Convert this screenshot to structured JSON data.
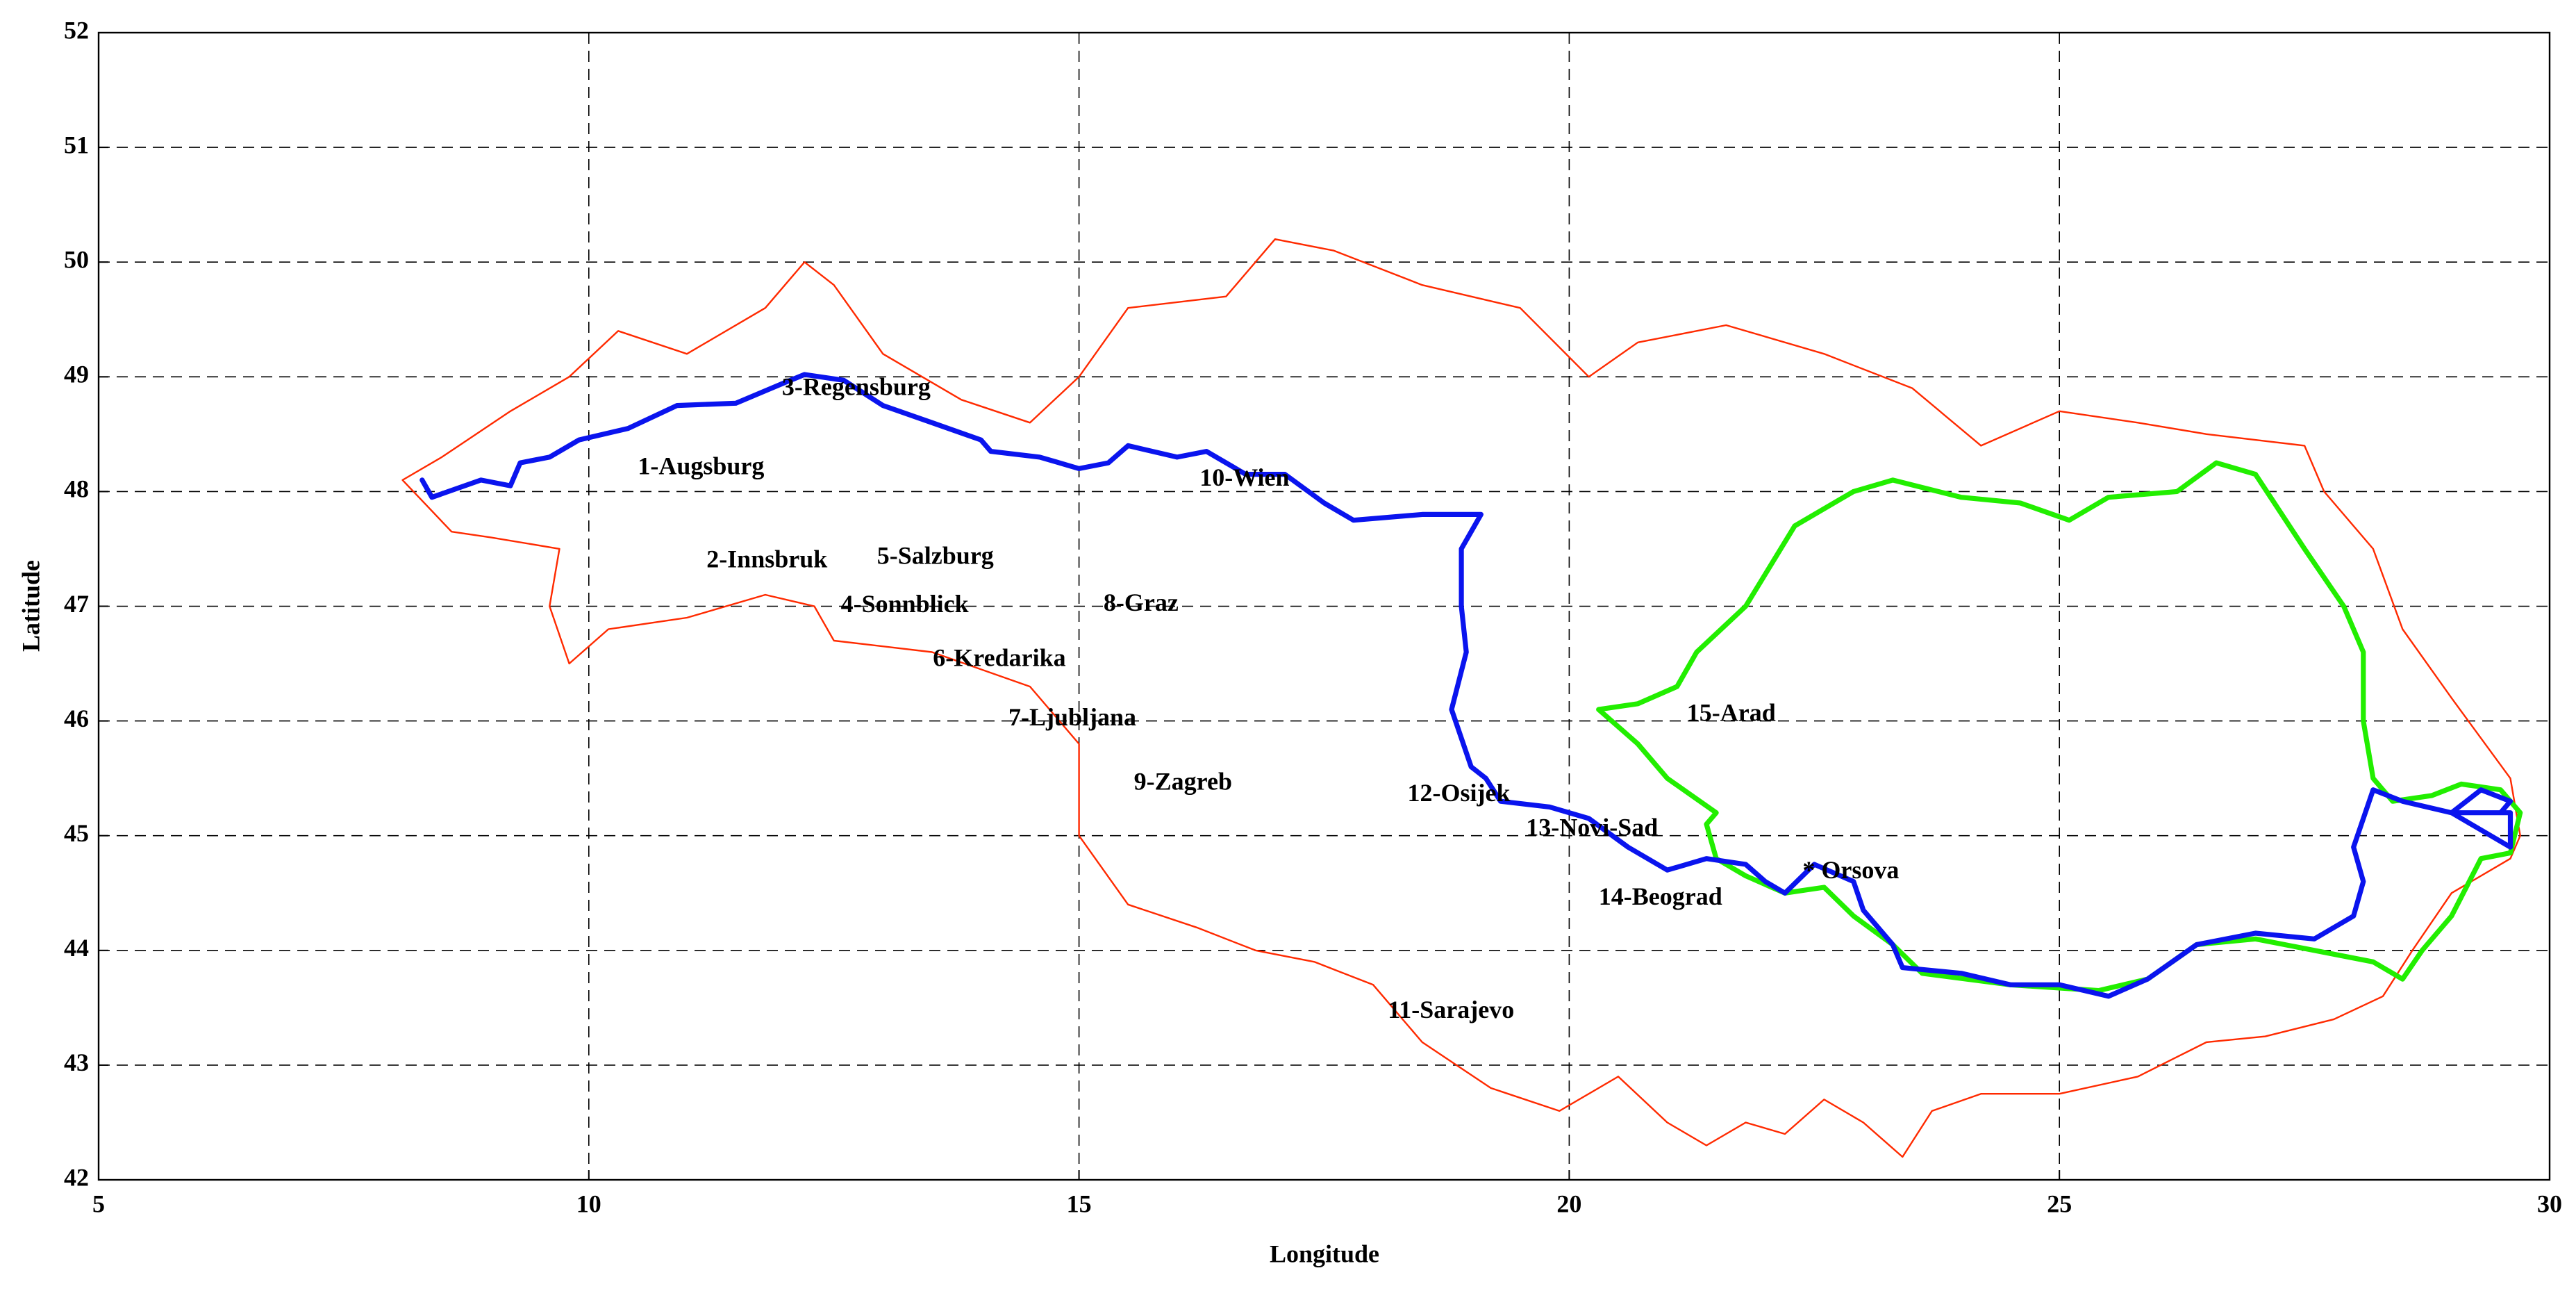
{
  "chart_data": {
    "type": "line",
    "xlabel": "Longitude",
    "ylabel": "Latitude",
    "xlim": [
      5,
      30
    ],
    "ylim": [
      42,
      52
    ],
    "xticks": [
      5,
      10,
      15,
      20,
      25,
      30
    ],
    "yticks": [
      42,
      43,
      44,
      45,
      46,
      47,
      48,
      49,
      50,
      51,
      52
    ],
    "grid": true,
    "series": [
      {
        "color": "#ff2a00",
        "width": 1,
        "x": [
          8.1,
          8.6,
          9.0,
          9.7,
          9.6,
          9.8,
          10.2,
          11.0,
          11.8,
          12.3,
          12.5,
          13.5,
          14.5,
          15.0,
          15.0,
          15.5,
          16.2,
          16.8,
          17.4,
          18.0,
          18.5,
          19.2,
          19.9,
          20.5,
          21.0,
          21.4,
          21.8,
          22.2,
          22.6,
          23.0,
          23.4,
          23.7,
          24.2,
          25.0,
          25.8,
          26.5,
          27.1,
          27.8,
          28.3,
          28.6,
          29.0,
          29.6,
          29.7,
          29.6,
          29.0,
          28.5,
          28.2,
          27.7,
          27.5,
          26.5,
          25.8,
          25.0,
          24.2,
          23.5,
          22.6,
          21.6,
          20.7,
          20.2,
          19.5,
          18.5,
          17.6,
          17.0,
          16.5,
          15.5,
          15.0,
          14.5,
          13.8,
          13.0,
          12.5,
          12.2,
          11.8,
          11.0,
          10.3,
          9.8,
          9.2,
          8.5,
          8.1
        ],
        "y": [
          48.1,
          47.65,
          47.6,
          47.5,
          47.0,
          46.5,
          46.8,
          46.9,
          47.1,
          47.0,
          46.7,
          46.6,
          46.3,
          45.8,
          45.0,
          44.4,
          44.2,
          44.0,
          43.9,
          43.7,
          43.2,
          42.8,
          42.6,
          42.9,
          42.5,
          42.3,
          42.5,
          42.4,
          42.7,
          42.5,
          42.2,
          42.6,
          42.75,
          42.75,
          42.9,
          43.2,
          43.25,
          43.4,
          43.6,
          44.0,
          44.5,
          44.8,
          45.0,
          45.5,
          46.2,
          46.8,
          47.5,
          48.0,
          48.4,
          48.5,
          48.6,
          48.7,
          48.4,
          48.9,
          49.2,
          49.45,
          49.3,
          49.0,
          49.6,
          49.8,
          50.1,
          50.2,
          49.7,
          49.6,
          49.0,
          48.6,
          48.8,
          49.2,
          49.8,
          50.0,
          49.6,
          49.2,
          49.4,
          49.0,
          48.7,
          48.3,
          48.1
        ]
      },
      {
        "color": "#22ee00",
        "width": 3,
        "x": [
          20.3,
          20.7,
          21.1,
          21.3,
          21.8,
          22.3,
          22.9,
          23.3,
          24.0,
          24.6,
          25.1,
          25.5,
          26.2,
          26.6,
          27.0,
          27.5,
          27.9,
          28.1,
          28.1,
          28.2,
          28.4,
          28.8,
          29.1,
          29.5,
          29.7,
          29.6,
          29.3,
          29.0,
          28.7,
          28.5,
          28.2,
          27.6,
          27.0,
          26.4,
          25.9,
          25.4,
          24.5,
          23.6,
          23.3,
          22.9,
          22.6,
          22.2,
          21.8,
          21.5,
          21.4,
          21.5,
          21.0,
          20.7,
          20.3
        ],
        "y": [
          46.1,
          46.15,
          46.3,
          46.6,
          47.0,
          47.7,
          48.0,
          48.1,
          47.95,
          47.9,
          47.75,
          47.95,
          48.0,
          48.25,
          48.15,
          47.5,
          47.0,
          46.6,
          46.0,
          45.5,
          45.3,
          45.35,
          45.45,
          45.4,
          45.2,
          44.85,
          44.8,
          44.3,
          44.0,
          43.75,
          43.9,
          44.0,
          44.1,
          44.05,
          43.75,
          43.65,
          43.7,
          43.8,
          44.05,
          44.3,
          44.55,
          44.5,
          44.65,
          44.8,
          45.1,
          45.2,
          45.5,
          45.8,
          46.1
        ]
      },
      {
        "color": "#0a14ee",
        "width": 3,
        "x": [
          8.3,
          8.4,
          8.9,
          9.2,
          9.3,
          9.6,
          9.9,
          10.4,
          10.9,
          11.5,
          12.0,
          12.2,
          12.6,
          13.0,
          13.5,
          14.0,
          14.1,
          14.6,
          15.0,
          15.3,
          15.5,
          16.0,
          16.3,
          16.7,
          17.1,
          17.5,
          17.8,
          18.5,
          19.0,
          19.1,
          18.9,
          18.9,
          18.95,
          18.8,
          19.0,
          19.15,
          19.3,
          19.8,
          20.2,
          20.6,
          21.0,
          21.4,
          21.8,
          22.0,
          22.2,
          22.5,
          22.9,
          23.0,
          23.3,
          23.4,
          24.0,
          24.5,
          25.0,
          25.5,
          25.9,
          26.4,
          27.0,
          27.6,
          28.0,
          28.1,
          28.0,
          28.2,
          28.5,
          29.0,
          29.4,
          29.6,
          29.6,
          29.0,
          29.3,
          29.6,
          29.5
        ],
        "y": [
          48.1,
          47.95,
          48.1,
          48.05,
          48.25,
          48.3,
          48.45,
          48.55,
          48.75,
          48.77,
          48.95,
          49.02,
          48.97,
          48.75,
          48.6,
          48.45,
          48.35,
          48.3,
          48.2,
          48.25,
          48.4,
          48.3,
          48.35,
          48.15,
          48.15,
          47.9,
          47.75,
          47.8,
          47.8,
          47.8,
          47.5,
          47.0,
          46.6,
          46.1,
          45.6,
          45.5,
          45.3,
          45.25,
          45.15,
          44.9,
          44.7,
          44.8,
          44.75,
          44.6,
          44.5,
          44.75,
          44.6,
          44.35,
          44.05,
          43.85,
          43.8,
          43.7,
          43.7,
          43.6,
          43.75,
          44.05,
          44.15,
          44.1,
          44.3,
          44.6,
          44.9,
          45.4,
          45.3,
          45.2,
          45.2,
          45.2,
          44.9,
          45.2,
          45.4,
          45.3,
          45.2
        ]
      }
    ],
    "annotations": [
      {
        "text": "3-Regensburg",
        "x": 11.97,
        "y": 48.89
      },
      {
        "text": "1-Augsburg",
        "x": 10.5,
        "y": 48.2
      },
      {
        "text": "2-Innsbruk",
        "x": 11.2,
        "y": 47.39
      },
      {
        "text": "5-Salzburg",
        "x": 12.94,
        "y": 47.42
      },
      {
        "text": "4-Sonnblick",
        "x": 12.57,
        "y": 47.0
      },
      {
        "text": "6-Kredarika",
        "x": 13.51,
        "y": 46.53
      },
      {
        "text": "7-Ljubljana",
        "x": 14.28,
        "y": 46.01
      },
      {
        "text": "8-Graz",
        "x": 15.25,
        "y": 47.01
      },
      {
        "text": "9-Zagreb",
        "x": 15.56,
        "y": 45.45
      },
      {
        "text": "10-Wien",
        "x": 16.23,
        "y": 48.1
      },
      {
        "text": "11-Sarajevo",
        "x": 18.15,
        "y": 43.46
      },
      {
        "text": "12-Osijek",
        "x": 18.35,
        "y": 45.35
      },
      {
        "text": "13-Novi-Sad",
        "x": 19.56,
        "y": 45.05
      },
      {
        "text": "14-Beograd",
        "x": 20.3,
        "y": 44.45
      },
      {
        "text": "15-Arad",
        "x": 21.2,
        "y": 46.05
      },
      {
        "text": "* Orsova",
        "x": 22.38,
        "y": 44.68
      }
    ]
  }
}
